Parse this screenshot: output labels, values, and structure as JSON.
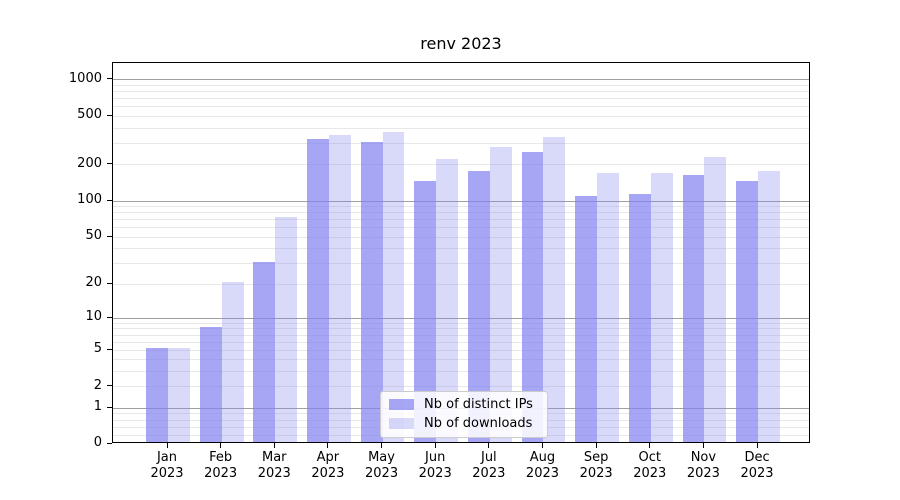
{
  "chart_data": {
    "type": "bar",
    "title": "renv 2023",
    "categories": [
      "Jan 2023",
      "Feb 2023",
      "Mar 2023",
      "Apr 2023",
      "May 2023",
      "Jun 2023",
      "Jul 2023",
      "Aug 2023",
      "Sep 2023",
      "Oct 2023",
      "Nov 2023",
      "Dec 2023"
    ],
    "series": [
      {
        "name": "Nb of distinct IPs",
        "color": "rgba(128,128,240,0.7)",
        "values": [
          5,
          8,
          30,
          315,
          295,
          142,
          170,
          244,
          106,
          110,
          158,
          142
        ]
      },
      {
        "name": "Nb of downloads",
        "color": "rgba(128,128,240,0.3)",
        "values": [
          5,
          20,
          71,
          338,
          360,
          215,
          268,
          324,
          165,
          166,
          222,
          171
        ]
      }
    ],
    "yscale": "log1p",
    "yticks": [
      0,
      1,
      2,
      5,
      10,
      20,
      50,
      100,
      200,
      500,
      1000
    ],
    "ylim": [
      0,
      1380
    ],
    "grid": "both",
    "legend_position": "lower center"
  },
  "colors": {
    "background": "#ffffff",
    "axis": "#000000",
    "grid_major": "#a0a0a0",
    "grid_minor": "#e8e8e8",
    "legend_border": "#cccccc"
  }
}
